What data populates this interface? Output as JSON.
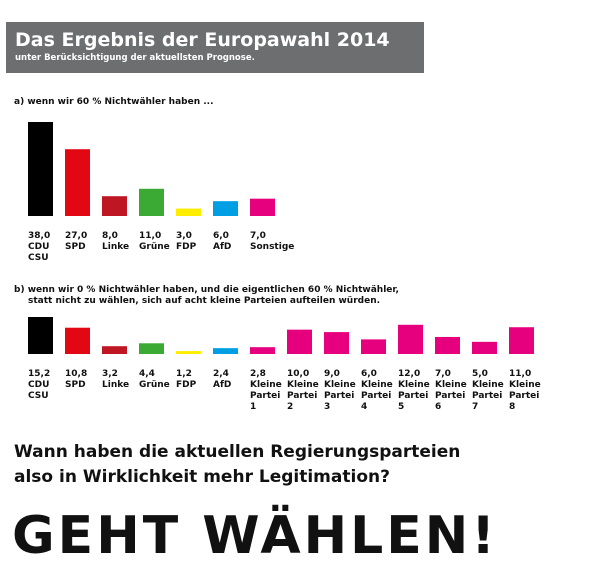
{
  "header": {
    "title": "Das Ergebnis der Europawahl 2014",
    "subtitle": "unter Berücksichtigung der aktuellsten Prognose."
  },
  "colors": {
    "header_bg": "#6d6e70",
    "CDU": "#000000",
    "SPD": "#e30613",
    "Linke": "#be1622",
    "Grüne": "#3aaa35",
    "FDP": "#ffed00",
    "AfD": "#009fe3",
    "Sonstige": "#e6007e"
  },
  "chart_data": [
    {
      "type": "bar",
      "title": "a) wenn wir 60 % Nichtwähler haben ...",
      "categories": [
        [
          "CDU",
          "CSU"
        ],
        [
          "SPD"
        ],
        [
          "Linke"
        ],
        [
          "Grüne"
        ],
        [
          "FDP"
        ],
        [
          "AfD"
        ],
        [
          "Sonstige"
        ]
      ],
      "values": [
        38.0,
        27.0,
        8.0,
        11.0,
        3.0,
        6.0,
        7.0
      ],
      "value_labels": [
        "38,0",
        "27,0",
        "8,0",
        "11,0",
        "3,0",
        "6,0",
        "7,0"
      ],
      "colors": [
        "#000000",
        "#e30613",
        "#be1622",
        "#3aaa35",
        "#ffed00",
        "#009fe3",
        "#e6007e"
      ],
      "ylim": [
        0,
        38
      ]
    },
    {
      "type": "bar",
      "title": [
        "b) wenn wir 0 % Nichtwähler haben, und die eigentlichen 60 % Nichtwähler,",
        "statt nicht zu wählen, sich auf acht kleine Parteien aufteilen würden."
      ],
      "categories": [
        [
          "CDU",
          "CSU"
        ],
        [
          "SPD"
        ],
        [
          "Linke"
        ],
        [
          "Grüne"
        ],
        [
          "FDP"
        ],
        [
          "AfD"
        ],
        [
          "Kleine",
          "Partei",
          "1"
        ],
        [
          "Kleine",
          "Partei",
          "2"
        ],
        [
          "Kleine",
          "Partei",
          "3"
        ],
        [
          "Kleine",
          "Partei",
          "4"
        ],
        [
          "Kleine",
          "Partei",
          "5"
        ],
        [
          "Kleine",
          "Partei",
          "6"
        ],
        [
          "Kleine",
          "Partei",
          "7"
        ],
        [
          "Kleine",
          "Partei",
          "8"
        ]
      ],
      "values": [
        15.2,
        10.8,
        3.2,
        4.4,
        1.2,
        2.4,
        2.8,
        10.0,
        9.0,
        6.0,
        12.0,
        7.0,
        5.0,
        11.0
      ],
      "value_labels": [
        "15,2",
        "10,8",
        "3,2",
        "4,4",
        "1,2",
        "2,4",
        "2,8",
        "10,0",
        "9,0",
        "6,0",
        "12,0",
        "7,0",
        "5,0",
        "11,0"
      ],
      "colors": [
        "#000000",
        "#e30613",
        "#be1622",
        "#3aaa35",
        "#ffed00",
        "#009fe3",
        "#e6007e",
        "#e6007e",
        "#e6007e",
        "#e6007e",
        "#e6007e",
        "#e6007e",
        "#e6007e",
        "#e6007e"
      ],
      "ylim": [
        0,
        15.2
      ]
    }
  ],
  "question": [
    "Wann haben die aktuellen Regierungsparteien",
    "also in Wirklichkeit mehr Legitimation?"
  ],
  "slogan": "GEHT WÄHLEN!"
}
